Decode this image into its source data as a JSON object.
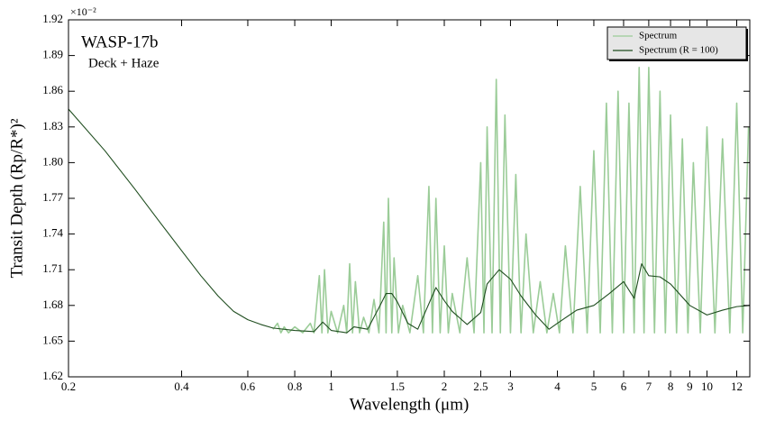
{
  "chart_data": {
    "type": "line",
    "title": "WASP-17b",
    "subtitle": "Deck + Haze",
    "xlabel": "Wavelength (μm)",
    "ylabel": "Transit Depth (Rp/R*)²",
    "y_multiplier": "×10⁻²",
    "xscale": "log",
    "xlim": [
      0.2,
      13
    ],
    "ylim": [
      1.62,
      1.92
    ],
    "xticks": [
      0.2,
      0.4,
      0.6,
      0.8,
      1,
      1.5,
      2,
      2.5,
      3,
      4,
      5,
      6,
      7,
      8,
      9,
      10,
      12
    ],
    "yticks": [
      1.62,
      1.65,
      1.68,
      1.71,
      1.74,
      1.77,
      {
        "value": 1.8,
        "label": "1.80"
      },
      1.83,
      1.86,
      1.89,
      1.92
    ],
    "legend": "upper right",
    "series": [
      {
        "name": "Spectrum",
        "color": "#9bcc98",
        "x": [
          0.7,
          0.72,
          0.735,
          0.75,
          0.77,
          0.8,
          0.84,
          0.88,
          0.9,
          0.93,
          0.945,
          0.96,
          0.98,
          1.0,
          1.04,
          1.08,
          1.1,
          1.12,
          1.14,
          1.16,
          1.19,
          1.22,
          1.26,
          1.3,
          1.34,
          1.38,
          1.4,
          1.42,
          1.45,
          1.47,
          1.51,
          1.55,
          1.62,
          1.7,
          1.76,
          1.82,
          1.86,
          1.9,
          1.95,
          2.0,
          2.05,
          2.1,
          2.2,
          2.3,
          2.4,
          2.5,
          2.55,
          2.6,
          2.68,
          2.75,
          2.82,
          2.9,
          3.0,
          3.1,
          3.2,
          3.3,
          3.45,
          3.6,
          3.75,
          3.9,
          4.05,
          4.2,
          4.4,
          4.6,
          4.8,
          5.0,
          5.2,
          5.4,
          5.6,
          5.8,
          6.0,
          6.2,
          6.4,
          6.6,
          6.8,
          7.0,
          7.25,
          7.5,
          7.75,
          8.0,
          8.3,
          8.6,
          8.9,
          9.2,
          9.6,
          10,
          10.5,
          11,
          11.5,
          12,
          12.45,
          12.9
        ],
        "values": [
          1.66,
          1.665,
          1.657,
          1.662,
          1.657,
          1.662,
          1.657,
          1.665,
          1.657,
          1.705,
          1.657,
          1.71,
          1.657,
          1.675,
          1.657,
          1.68,
          1.657,
          1.715,
          1.657,
          1.7,
          1.657,
          1.67,
          1.657,
          1.685,
          1.657,
          1.75,
          1.657,
          1.77,
          1.657,
          1.72,
          1.657,
          1.68,
          1.657,
          1.705,
          1.657,
          1.78,
          1.657,
          1.77,
          1.657,
          1.73,
          1.657,
          1.69,
          1.657,
          1.72,
          1.657,
          1.8,
          1.657,
          1.83,
          1.657,
          1.87,
          1.657,
          1.84,
          1.657,
          1.79,
          1.657,
          1.74,
          1.657,
          1.7,
          1.657,
          1.69,
          1.657,
          1.73,
          1.657,
          1.78,
          1.657,
          1.81,
          1.657,
          1.85,
          1.657,
          1.86,
          1.657,
          1.85,
          1.657,
          1.88,
          1.657,
          1.88,
          1.657,
          1.86,
          1.657,
          1.84,
          1.657,
          1.82,
          1.657,
          1.8,
          1.657,
          1.83,
          1.657,
          1.82,
          1.657,
          1.85,
          1.657,
          1.83
        ]
      },
      {
        "name": "Spectrum (R = 100)",
        "color": "#1f4d1f",
        "x": [
          0.2,
          0.25,
          0.3,
          0.35,
          0.4,
          0.45,
          0.5,
          0.55,
          0.6,
          0.65,
          0.7,
          0.8,
          0.9,
          0.95,
          1.0,
          1.1,
          1.15,
          1.25,
          1.35,
          1.4,
          1.45,
          1.5,
          1.6,
          1.7,
          1.8,
          1.9,
          2.0,
          2.1,
          2.3,
          2.5,
          2.6,
          2.8,
          3.0,
          3.2,
          3.5,
          3.8,
          4.0,
          4.5,
          5,
          5.5,
          6,
          6.4,
          6.7,
          7,
          7.5,
          8,
          9,
          10,
          11,
          12,
          13
        ],
        "values": [
          1.845,
          1.81,
          1.778,
          1.75,
          1.726,
          1.705,
          1.688,
          1.675,
          1.668,
          1.664,
          1.661,
          1.659,
          1.658,
          1.666,
          1.659,
          1.657,
          1.662,
          1.66,
          1.68,
          1.69,
          1.69,
          1.683,
          1.665,
          1.66,
          1.678,
          1.695,
          1.684,
          1.675,
          1.664,
          1.674,
          1.698,
          1.71,
          1.702,
          1.688,
          1.672,
          1.66,
          1.665,
          1.676,
          1.68,
          1.69,
          1.7,
          1.686,
          1.715,
          1.705,
          1.704,
          1.698,
          1.68,
          1.672,
          1.676,
          1.679,
          1.68
        ]
      }
    ]
  }
}
